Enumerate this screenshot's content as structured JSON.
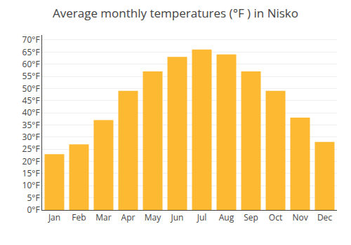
{
  "chart_data": {
    "type": "bar",
    "title": "Average monthly temperatures (°F ) in Nisko",
    "categories": [
      "Jan",
      "Feb",
      "Mar",
      "Apr",
      "May",
      "Jun",
      "Jul",
      "Aug",
      "Sep",
      "Oct",
      "Nov",
      "Dec"
    ],
    "values": [
      23,
      27,
      37,
      49,
      57,
      63,
      66,
      64,
      57,
      49,
      38,
      28
    ],
    "color": "#FDB931",
    "ylim": [
      0,
      72
    ],
    "yticks": [
      {
        "value": 0,
        "label": "0°F"
      },
      {
        "value": 5,
        "label": "5°F"
      },
      {
        "value": 10,
        "label": "10°F"
      },
      {
        "value": 15,
        "label": "15°F"
      },
      {
        "value": 20,
        "label": "20°F"
      },
      {
        "value": 25,
        "label": "25°F"
      },
      {
        "value": 30,
        "label": "30°F"
      },
      {
        "value": 35,
        "label": "35°F"
      },
      {
        "value": 40,
        "label": "40°F"
      },
      {
        "value": 45,
        "label": "45°F"
      },
      {
        "value": 50,
        "label": "50°F"
      },
      {
        "value": 55,
        "label": "55°F"
      },
      {
        "value": 60,
        "label": "60°F"
      },
      {
        "value": 65,
        "label": "65°F"
      },
      {
        "value": 70,
        "label": "70°F"
      }
    ],
    "grid": true
  }
}
